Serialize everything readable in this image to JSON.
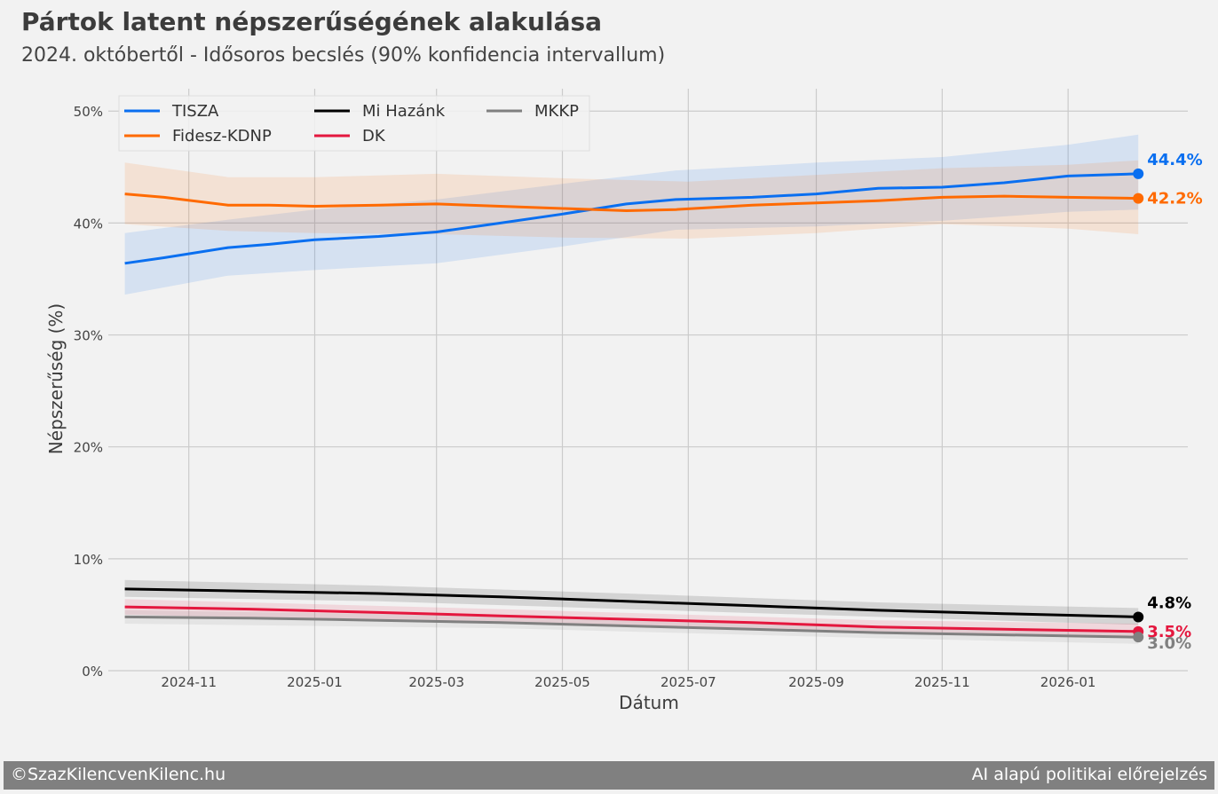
{
  "header": {
    "title": "Pártok latent népszerűségének alakulása",
    "subtitle": "2024. októbertől - Idősoros becslés (90% konfidencia intervallum)"
  },
  "footer": {
    "left": "©SzazKilencvenKilenc.hu",
    "right": "AI alapú politikai előrejelzés"
  },
  "colors": {
    "background": "#f2f2f2",
    "grid": "#cbcbcb",
    "footer": "#808080"
  },
  "chart_data": {
    "type": "line",
    "xlabel": "Dátum",
    "ylabel": "Népszerűség (%)",
    "ylim": [
      0,
      52
    ],
    "xlim": [
      "2024-09-23",
      "2026-02-28"
    ],
    "y_ticks": [
      0,
      10,
      20,
      30,
      40,
      50
    ],
    "y_tick_labels": [
      "0%",
      "10%",
      "20%",
      "30%",
      "40%",
      "50%"
    ],
    "x_ticks": [
      "2024-11-01",
      "2025-01-01",
      "2025-03-01",
      "2025-05-01",
      "2025-07-01",
      "2025-09-01",
      "2025-11-01",
      "2026-01-01"
    ],
    "x_tick_labels": [
      "2024-11",
      "2025-01",
      "2025-03",
      "2025-05",
      "2025-07",
      "2025-09",
      "2025-11",
      "2026-01"
    ],
    "grid": true,
    "legend_position": "top-left",
    "series": [
      {
        "name": "TISZA",
        "color": "#0a6ff0",
        "end_label": "44.4%",
        "points": [
          [
            "2024-10-01",
            36.4
          ],
          [
            "2024-10-20",
            36.9
          ],
          [
            "2024-11-20",
            37.8
          ],
          [
            "2024-12-10",
            38.1
          ],
          [
            "2025-01-01",
            38.5
          ],
          [
            "2025-02-01",
            38.8
          ],
          [
            "2025-03-01",
            39.2
          ],
          [
            "2025-04-01",
            40.0
          ],
          [
            "2025-05-01",
            40.8
          ],
          [
            "2025-06-01",
            41.7
          ],
          [
            "2025-06-25",
            42.1
          ],
          [
            "2025-08-01",
            42.3
          ],
          [
            "2025-09-01",
            42.6
          ],
          [
            "2025-10-01",
            43.1
          ],
          [
            "2025-11-01",
            43.2
          ],
          [
            "2025-12-01",
            43.6
          ],
          [
            "2026-01-01",
            44.2
          ],
          [
            "2026-02-04",
            44.4
          ]
        ],
        "lower": [
          [
            "2024-10-01",
            33.6
          ],
          [
            "2024-11-20",
            35.3
          ],
          [
            "2025-01-01",
            35.8
          ],
          [
            "2025-03-01",
            36.4
          ],
          [
            "2025-05-01",
            37.9
          ],
          [
            "2025-06-25",
            39.4
          ],
          [
            "2025-09-01",
            39.7
          ],
          [
            "2025-11-01",
            40.2
          ],
          [
            "2026-01-01",
            41.0
          ],
          [
            "2026-02-04",
            41.2
          ]
        ],
        "upper": [
          [
            "2024-10-01",
            39.1
          ],
          [
            "2024-11-20",
            40.3
          ],
          [
            "2025-01-01",
            41.2
          ],
          [
            "2025-03-01",
            42.1
          ],
          [
            "2025-05-01",
            43.5
          ],
          [
            "2025-06-25",
            44.7
          ],
          [
            "2025-09-01",
            45.4
          ],
          [
            "2025-11-01",
            45.9
          ],
          [
            "2026-01-01",
            47.0
          ],
          [
            "2026-02-04",
            47.9
          ]
        ]
      },
      {
        "name": "Fidesz-KDNP",
        "color": "#ff6a00",
        "end_label": "42.2%",
        "points": [
          [
            "2024-10-01",
            42.6
          ],
          [
            "2024-10-20",
            42.3
          ],
          [
            "2024-11-20",
            41.6
          ],
          [
            "2024-12-10",
            41.6
          ],
          [
            "2025-01-01",
            41.5
          ],
          [
            "2025-02-01",
            41.6
          ],
          [
            "2025-03-01",
            41.7
          ],
          [
            "2025-04-01",
            41.5
          ],
          [
            "2025-05-01",
            41.3
          ],
          [
            "2025-06-01",
            41.1
          ],
          [
            "2025-06-25",
            41.2
          ],
          [
            "2025-08-01",
            41.6
          ],
          [
            "2025-09-01",
            41.8
          ],
          [
            "2025-10-01",
            42.0
          ],
          [
            "2025-11-01",
            42.3
          ],
          [
            "2025-12-01",
            42.4
          ],
          [
            "2026-01-01",
            42.3
          ],
          [
            "2026-02-04",
            42.2
          ]
        ],
        "lower": [
          [
            "2024-10-01",
            39.9
          ],
          [
            "2024-11-20",
            39.3
          ],
          [
            "2025-01-01",
            39.1
          ],
          [
            "2025-03-01",
            39.0
          ],
          [
            "2025-05-01",
            38.7
          ],
          [
            "2025-07-01",
            38.6
          ],
          [
            "2025-09-01",
            39.1
          ],
          [
            "2025-11-01",
            39.9
          ],
          [
            "2026-01-01",
            39.5
          ],
          [
            "2026-02-04",
            39.0
          ]
        ],
        "upper": [
          [
            "2024-10-01",
            45.4
          ],
          [
            "2024-11-20",
            44.1
          ],
          [
            "2025-01-01",
            44.1
          ],
          [
            "2025-03-01",
            44.4
          ],
          [
            "2025-05-01",
            44.0
          ],
          [
            "2025-07-01",
            43.7
          ],
          [
            "2025-09-01",
            44.3
          ],
          [
            "2025-11-01",
            44.9
          ],
          [
            "2026-01-01",
            45.2
          ],
          [
            "2026-02-04",
            45.6
          ]
        ]
      },
      {
        "name": "Mi Hazánk",
        "color": "#000000",
        "end_label": "4.8%",
        "points": [
          [
            "2024-10-01",
            7.3
          ],
          [
            "2024-12-01",
            7.1
          ],
          [
            "2025-02-01",
            6.9
          ],
          [
            "2025-04-01",
            6.6
          ],
          [
            "2025-06-01",
            6.2
          ],
          [
            "2025-08-01",
            5.8
          ],
          [
            "2025-10-01",
            5.4
          ],
          [
            "2025-12-01",
            5.1
          ],
          [
            "2026-02-04",
            4.8
          ]
        ],
        "lower": [
          [
            "2024-10-01",
            6.6
          ],
          [
            "2025-02-01",
            6.2
          ],
          [
            "2025-06-01",
            5.5
          ],
          [
            "2025-10-01",
            4.8
          ],
          [
            "2026-02-04",
            4.1
          ]
        ],
        "upper": [
          [
            "2024-10-01",
            8.1
          ],
          [
            "2025-02-01",
            7.6
          ],
          [
            "2025-06-01",
            6.9
          ],
          [
            "2025-10-01",
            6.1
          ],
          [
            "2026-02-04",
            5.6
          ]
        ]
      },
      {
        "name": "DK",
        "color": "#e4173e",
        "end_label": "3.5%",
        "points": [
          [
            "2024-10-01",
            5.7
          ],
          [
            "2024-12-01",
            5.5
          ],
          [
            "2025-02-01",
            5.2
          ],
          [
            "2025-04-01",
            4.9
          ],
          [
            "2025-06-01",
            4.6
          ],
          [
            "2025-08-01",
            4.3
          ],
          [
            "2025-10-01",
            3.9
          ],
          [
            "2025-12-01",
            3.7
          ],
          [
            "2026-02-04",
            3.5
          ]
        ],
        "lower": [
          [
            "2024-10-01",
            5.0
          ],
          [
            "2025-04-01",
            4.3
          ],
          [
            "2025-10-01",
            3.3
          ],
          [
            "2026-02-04",
            2.9
          ]
        ],
        "upper": [
          [
            "2024-10-01",
            6.4
          ],
          [
            "2025-04-01",
            5.5
          ],
          [
            "2025-10-01",
            4.5
          ],
          [
            "2026-02-04",
            4.2
          ]
        ]
      },
      {
        "name": "MKKP",
        "color": "#808080",
        "end_label": "3.0%",
        "points": [
          [
            "2024-10-01",
            4.8
          ],
          [
            "2024-12-01",
            4.7
          ],
          [
            "2025-02-01",
            4.5
          ],
          [
            "2025-04-01",
            4.3
          ],
          [
            "2025-06-01",
            4.0
          ],
          [
            "2025-08-01",
            3.7
          ],
          [
            "2025-10-01",
            3.4
          ],
          [
            "2025-12-01",
            3.2
          ],
          [
            "2026-02-04",
            3.0
          ]
        ],
        "lower": [
          [
            "2024-10-01",
            4.2
          ],
          [
            "2025-04-01",
            3.8
          ],
          [
            "2025-10-01",
            2.9
          ],
          [
            "2026-02-04",
            2.4
          ]
        ],
        "upper": [
          [
            "2024-10-01",
            5.4
          ],
          [
            "2025-04-01",
            4.9
          ],
          [
            "2025-10-01",
            4.0
          ],
          [
            "2026-02-04",
            3.6
          ]
        ]
      }
    ]
  }
}
